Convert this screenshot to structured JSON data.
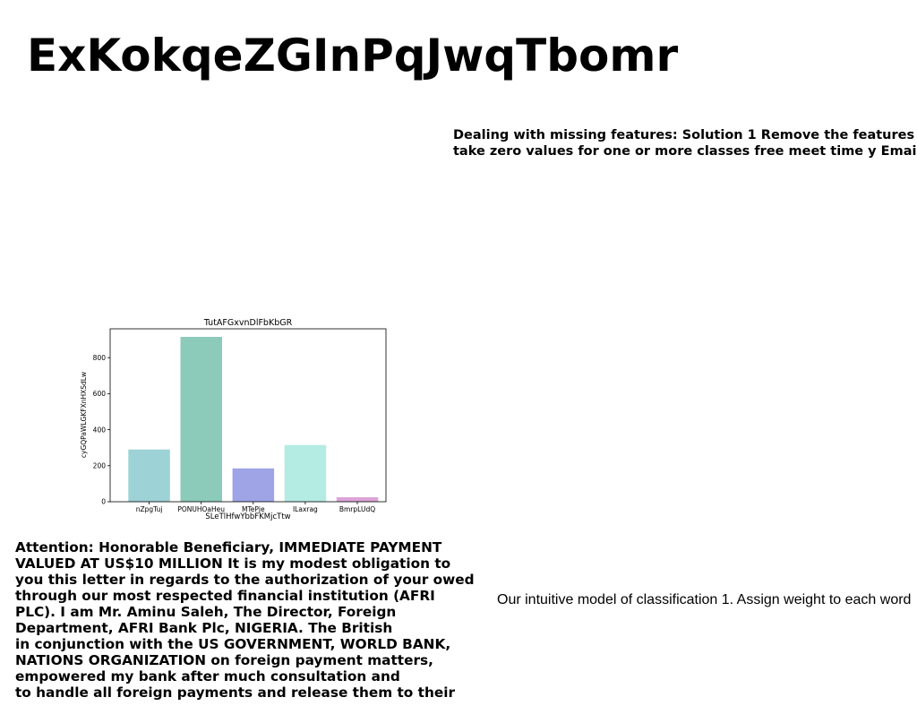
{
  "title": "ExKokqeZGInPqJwqTbomr",
  "note_lines": [
    "Dealing with missing features: Solution 1 Remove the features",
    "take zero values for one or more classes free meet time y Email"
  ],
  "chart_data": {
    "type": "bar",
    "title": "TutAFGxvnDlFbKbGR",
    "xlabel": "SLeTlHfwYbbFKMjcTtw",
    "ylabel": "cyGQPaWLGKFXnHXSdLw",
    "categories": [
      "nZpgTuj",
      "PONUHOaHeu",
      "MTePje",
      "ILaxrag",
      "BmrpLUdQ"
    ],
    "values": [
      290,
      915,
      185,
      315,
      25
    ],
    "colors": [
      "#9dd2d6",
      "#8ccaba",
      "#9ea4e5",
      "#b4ebe3",
      "#dda4d8"
    ],
    "ylim": [
      0,
      960
    ],
    "yticks": [
      0,
      200,
      400,
      600,
      800
    ],
    "grid": false,
    "legend": "none"
  },
  "letter_lines": [
    "Attention: Honorable Beneficiary, IMMEDIATE PAYMENT",
    "VALUED AT US$10 MILLION It is my modest obligation to",
    "you this letter in regards to the authorization of your owed",
    "through our most respected financial institution (AFRI",
    "PLC). I am Mr. Aminu Saleh, The Director, Foreign",
    "Department, AFRI Bank Plc, NIGERIA. The British",
    "in conjunction with the US GOVERNMENT, WORLD BANK,",
    "NATIONS ORGANIZATION on foreign payment matters,",
    "empowered my bank after much consultation and",
    "to handle all foreign payments and release them to their"
  ],
  "side_caption": "Our intuitive model of classification 1. Assign weight to each word"
}
